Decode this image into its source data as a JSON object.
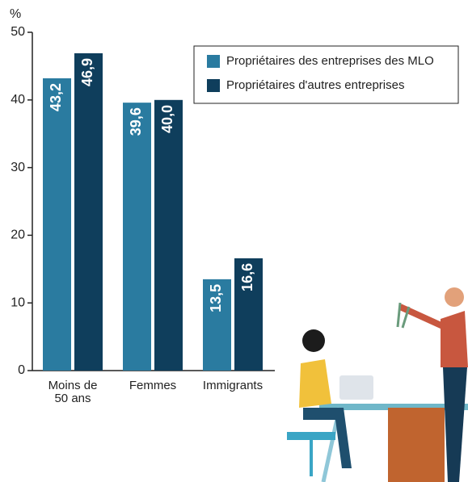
{
  "chart_data": {
    "type": "bar",
    "y_label": "%",
    "categories": [
      "Moins de\n50 ans",
      "Femmes",
      "Immigrants"
    ],
    "series": [
      {
        "name": "Propriétaires des entreprises des MLO",
        "color": "#2a7ba0",
        "values": [
          43.2,
          39.6,
          13.5
        ],
        "value_labels": [
          "43,2",
          "39,6",
          "13,5"
        ]
      },
      {
        "name": "Propriétaires d'autres entreprises",
        "color": "#0f3e5c",
        "values": [
          46.9,
          40.0,
          16.6
        ],
        "value_labels": [
          "46,9",
          "40,0",
          "16,6"
        ]
      }
    ],
    "ylim": [
      0,
      50
    ],
    "yticks": [
      0,
      10,
      20,
      30,
      40,
      50
    ],
    "legend": "upper right"
  }
}
